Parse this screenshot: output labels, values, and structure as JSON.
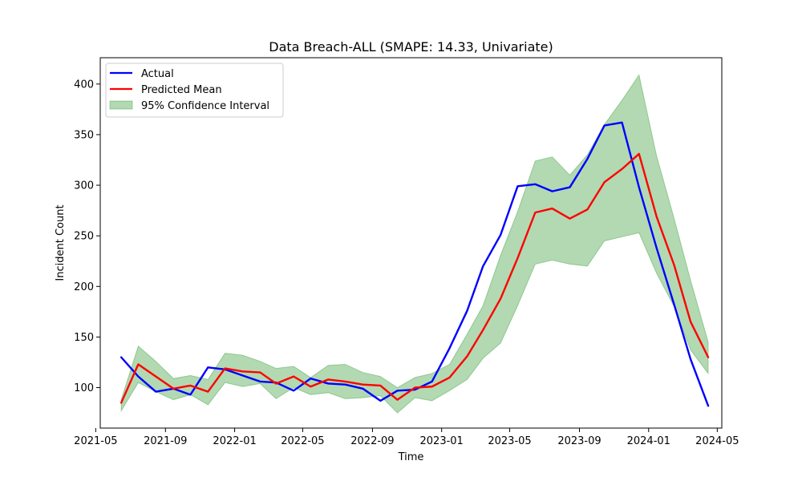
{
  "chart_data": {
    "type": "line",
    "title": "Data Breach-ALL (SMAPE: 14.33, Univariate)",
    "xlabel": "Time",
    "ylabel": "Incident Count",
    "x": [
      "2021-06",
      "2021-07",
      "2021-08",
      "2021-09",
      "2021-10",
      "2021-11",
      "2021-12",
      "2022-01",
      "2022-02",
      "2022-03",
      "2022-04",
      "2022-05",
      "2022-06",
      "2022-07",
      "2022-08",
      "2022-09",
      "2022-10",
      "2022-11",
      "2022-12",
      "2023-01",
      "2023-02",
      "2023-03",
      "2023-04",
      "2023-05",
      "2023-06",
      "2023-07",
      "2023-08",
      "2023-09",
      "2023-10",
      "2023-11",
      "2023-12",
      "2024-01",
      "2024-02",
      "2024-03",
      "2024-04"
    ],
    "series": [
      {
        "name": "Actual",
        "color": "#0000ff",
        "values": [
          130,
          111,
          96,
          99,
          93,
          120,
          118,
          112,
          106,
          105,
          97,
          109,
          104,
          103,
          99,
          87,
          97,
          98,
          106,
          139,
          176,
          220,
          251,
          299,
          301,
          294,
          298,
          326,
          359,
          362,
          298,
          238,
          182,
          128,
          82
        ]
      },
      {
        "name": "Predicted Mean",
        "color": "#ff0000",
        "values": [
          85,
          123,
          111,
          99,
          102,
          96,
          119,
          116,
          115,
          104,
          111,
          101,
          108,
          106,
          103,
          102,
          88,
          100,
          101,
          110,
          131,
          157,
          188,
          228,
          273,
          277,
          267,
          276,
          303,
          316,
          331,
          269,
          221,
          165,
          130
        ]
      }
    ],
    "band": {
      "name": "95% Confidence Interval",
      "color": "#008000",
      "upper": [
        88,
        141,
        126,
        109,
        112,
        108,
        134,
        132,
        126,
        119,
        121,
        110,
        122,
        123,
        115,
        111,
        100,
        110,
        114,
        123,
        153,
        181,
        231,
        274,
        324,
        328,
        310,
        330,
        360,
        384,
        409,
        329,
        267,
        206,
        145
      ],
      "lower": [
        77,
        105,
        96,
        88,
        93,
        83,
        105,
        101,
        104,
        89,
        100,
        93,
        95,
        89,
        90,
        92,
        75,
        90,
        87,
        97,
        108,
        129,
        144,
        181,
        222,
        226,
        222,
        220,
        245,
        249,
        253,
        213,
        180,
        137,
        114
      ]
    },
    "xticks": [
      "2021-05",
      "2021-09",
      "2022-01",
      "2022-05",
      "2022-09",
      "2023-01",
      "2023-05",
      "2023-09",
      "2024-01",
      "2024-05"
    ],
    "yticks": [
      100,
      150,
      200,
      250,
      300,
      350,
      400
    ],
    "xlim": [
      "2021-05-09",
      "2024-05-09"
    ],
    "ylim": [
      60,
      426
    ],
    "legend_position": "top-left",
    "grid": false
  }
}
